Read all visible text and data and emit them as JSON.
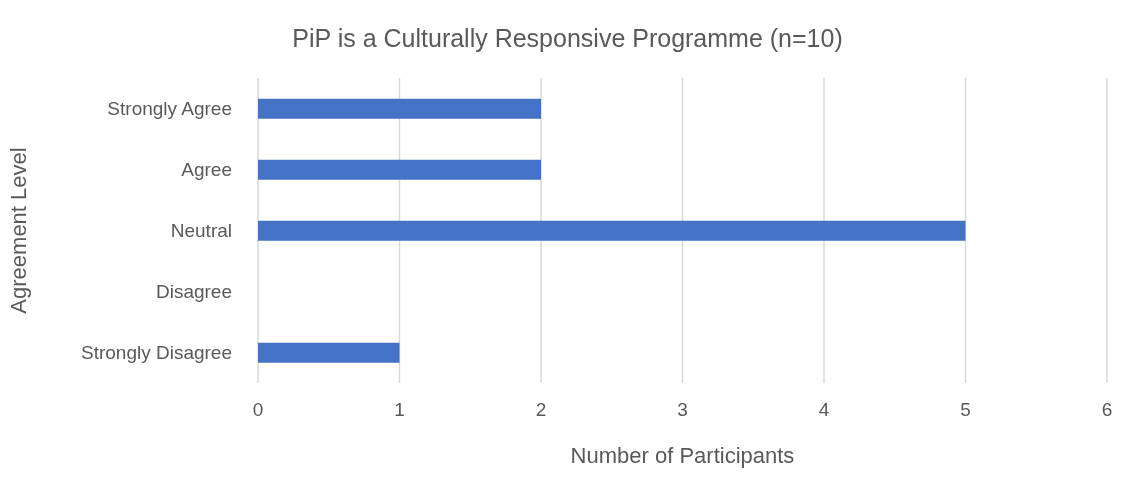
{
  "chart_data": {
    "type": "bar",
    "orientation": "horizontal",
    "title": "PiP is a Culturally Responsive Programme (n=10)",
    "xlabel": "Number of Participants",
    "ylabel": "Agreement Level",
    "categories": [
      "Strongly Agree",
      "Agree",
      "Neutral",
      "Disagree",
      "Strongly Disagree"
    ],
    "values": [
      2,
      2,
      5,
      0,
      1
    ],
    "color": "#4472c4",
    "xlim": [
      0,
      6
    ],
    "xticks": [
      0,
      1,
      2,
      3,
      4,
      5,
      6
    ],
    "grid": "x"
  }
}
